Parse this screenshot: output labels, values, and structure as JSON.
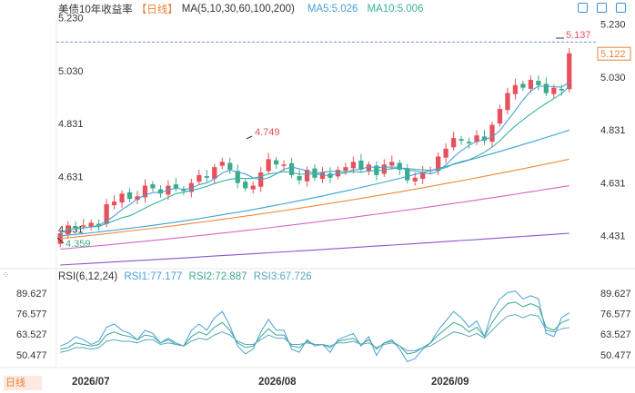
{
  "header": {
    "title": "美债10年收益率",
    "period": "【日线】",
    "indicator": "MA(5,10,30,60,100,200)",
    "ma5": "MA5:5.026",
    "ma10": "MA10:5.006"
  },
  "rsi_header": {
    "label": "RSI(6,12,24)",
    "rsi1": "RSI1:77.177",
    "rsi2": "RSI2:72.887",
    "rsi3": "RSI3:67.726"
  },
  "period_button": "日线",
  "colors": {
    "up": "#e8505b",
    "down": "#3daa8c",
    "ma5": "#4aa0d8",
    "ma10": "#39b39d",
    "ma30": "#3aa3d8",
    "ma60": "#ef8a3a",
    "ma100": "#d764c8",
    "ma200": "#8b56c9",
    "accent": "#e8833a"
  },
  "chart_data": [
    {
      "type": "candlestick",
      "title": "美债10年收益率",
      "yticks": [
        "5.230",
        "5.030",
        "4.831",
        "4.631",
        "4.431"
      ],
      "ylim": [
        4.32,
        5.26
      ],
      "xticks": [
        "2026/07",
        "2026/08",
        "2026/09"
      ],
      "last_price": "5.122",
      "high_label": "5.137",
      "mid_label": "4.749",
      "low_label": "4.359",
      "closes": [
        4.44,
        4.47,
        4.46,
        4.47,
        4.48,
        4.47,
        4.55,
        4.56,
        4.59,
        4.57,
        4.58,
        4.62,
        4.61,
        4.59,
        4.62,
        4.61,
        4.6,
        4.63,
        4.66,
        4.65,
        4.69,
        4.71,
        4.68,
        4.63,
        4.61,
        4.62,
        4.67,
        4.72,
        4.7,
        4.7,
        4.66,
        4.64,
        4.68,
        4.65,
        4.67,
        4.65,
        4.68,
        4.69,
        4.71,
        4.68,
        4.7,
        4.66,
        4.7,
        4.71,
        4.68,
        4.64,
        4.65,
        4.67,
        4.68,
        4.73,
        4.76,
        4.8,
        4.79,
        4.78,
        4.81,
        4.79,
        4.85,
        4.91,
        4.97,
        5.0,
        4.99,
        5.02,
        5.0,
        4.97,
        4.99,
        4.98,
        5.12
      ]
    },
    {
      "type": "line",
      "title": "RSI(6,12,24)",
      "yticks": [
        "89.627",
        "76.577",
        "63.527",
        "50.477"
      ],
      "ylim": [
        44,
        96
      ],
      "series": [
        {
          "name": "RSI1",
          "values": [
            56,
            58,
            62,
            60,
            57,
            59,
            68,
            70,
            66,
            64,
            60,
            66,
            64,
            58,
            61,
            58,
            56,
            66,
            70,
            66,
            74,
            78,
            69,
            56,
            51,
            54,
            65,
            73,
            66,
            66,
            54,
            52,
            60,
            56,
            57,
            52,
            60,
            62,
            64,
            56,
            62,
            50,
            58,
            60,
            54,
            46,
            48,
            54,
            58,
            66,
            72,
            78,
            74,
            68,
            72,
            62,
            78,
            86,
            90,
            91,
            86,
            88,
            86,
            64,
            62,
            74,
            77.177
          ]
        },
        {
          "name": "RSI2",
          "values": [
            54,
            55,
            58,
            57,
            56,
            57,
            63,
            65,
            63,
            62,
            60,
            63,
            62,
            58,
            60,
            57,
            56,
            62,
            65,
            63,
            68,
            71,
            66,
            58,
            55,
            56,
            62,
            67,
            63,
            63,
            56,
            55,
            59,
            57,
            57,
            55,
            59,
            60,
            61,
            57,
            60,
            54,
            58,
            59,
            56,
            51,
            52,
            55,
            58,
            63,
            67,
            71,
            69,
            65,
            68,
            62,
            71,
            78,
            83,
            84,
            81,
            83,
            81,
            68,
            66,
            71,
            72.887
          ]
        },
        {
          "name": "RSI3",
          "values": [
            52,
            53,
            55,
            55,
            54,
            55,
            59,
            60,
            59,
            59,
            58,
            60,
            60,
            57,
            58,
            57,
            56,
            59,
            61,
            60,
            63,
            65,
            63,
            59,
            57,
            57,
            60,
            63,
            61,
            61,
            57,
            57,
            58,
            57,
            57,
            56,
            58,
            58,
            59,
            57,
            58,
            55,
            57,
            58,
            56,
            53,
            53,
            55,
            56,
            59,
            62,
            65,
            64,
            62,
            64,
            61,
            66,
            71,
            75,
            76,
            74,
            76,
            75,
            66,
            65,
            67,
            67.726
          ]
        }
      ]
    }
  ]
}
